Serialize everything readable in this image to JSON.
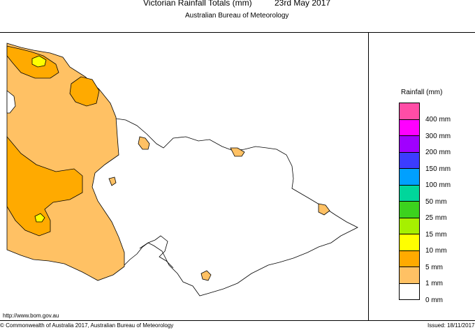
{
  "header": {
    "title": "Victorian Rainfall Totals (mm)",
    "date": "23rd May 2017",
    "subtitle": "Australian Bureau of Meteorology"
  },
  "legend": {
    "title": "Rainfall (mm)",
    "categories": [
      {
        "label": "400 mm",
        "color": "#ff4da6"
      },
      {
        "label": "300 mm",
        "color": "#ff00ff"
      },
      {
        "label": "200 mm",
        "color": "#a000ff"
      },
      {
        "label": "150 mm",
        "color": "#3c3cff"
      },
      {
        "label": "100 mm",
        "color": "#00a0ff"
      },
      {
        "label": "50 mm",
        "color": "#00d69b"
      },
      {
        "label": "25 mm",
        "color": "#3cd21e"
      },
      {
        "label": "15 mm",
        "color": "#a6f000"
      },
      {
        "label": "10 mm",
        "color": "#ffff00"
      },
      {
        "label": "5 mm",
        "color": "#ffaa00"
      },
      {
        "label": "1 mm",
        "color": "#ffc164"
      },
      {
        "label": "0 mm",
        "color": "#ffffff"
      }
    ]
  },
  "footer": {
    "url": "http://www.bom.gov.au",
    "copyright": "© Commonwealth of Australia 2017, Australian Bureau of Meteorology",
    "issued": "Issued: 18/11/2017"
  }
}
